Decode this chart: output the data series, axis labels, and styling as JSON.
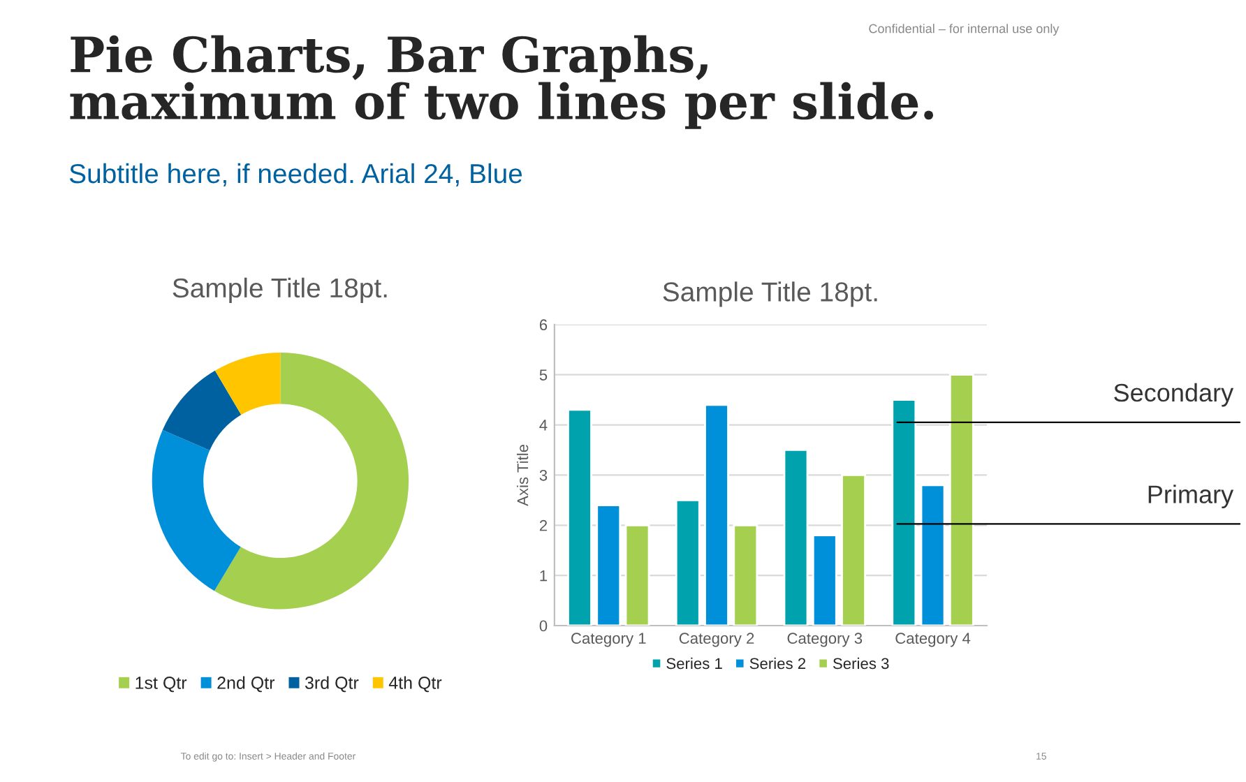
{
  "chart_data": [
    {
      "type": "other",
      "title": "Pie Charts, Bar Graphs,\nmaximum of two lines per slide.",
      "subtitle": "Subtitle here, if needed. Arial 24, Blue",
      "annotations": [
        "Confidential – for internal use only",
        "To edit go to: Insert > Header and Footer",
        "15"
      ]
    },
    {
      "type": "donut",
      "title": "Sample Title 18pt.",
      "categories": [
        "1st Qtr",
        "2nd Qtr",
        "3rd Qtr",
        "4th Qtr"
      ],
      "values": [
        58.6,
        22.9,
        10,
        8.5
      ],
      "colors": [
        "#a4cf4f",
        "#0090da",
        "#0061a0",
        "#ffc600"
      ],
      "legend": "bottom"
    },
    {
      "type": "bar",
      "title": "Sample Title 18pt.",
      "ylabel": "Axis Title",
      "categories": [
        "Category 1",
        "Category 2",
        "Category 3",
        "Category 4"
      ],
      "series": [
        {
          "name": "Series 1",
          "color": "#00a3ad",
          "values": [
            4.3,
            2.5,
            3.5,
            4.5
          ]
        },
        {
          "name": "Series 2",
          "color": "#0090da",
          "values": [
            2.4,
            4.4,
            1.8,
            2.8
          ]
        },
        {
          "name": "Series 3",
          "color": "#a4cf4f",
          "values": [
            2,
            2,
            3,
            5
          ]
        }
      ],
      "ylim": [
        0,
        6
      ],
      "yticks": [
        0,
        1,
        2,
        3,
        4,
        5,
        6
      ],
      "grid": "y",
      "legend": "bottom",
      "annotations": [
        "Secondary",
        "Primary"
      ]
    }
  ]
}
